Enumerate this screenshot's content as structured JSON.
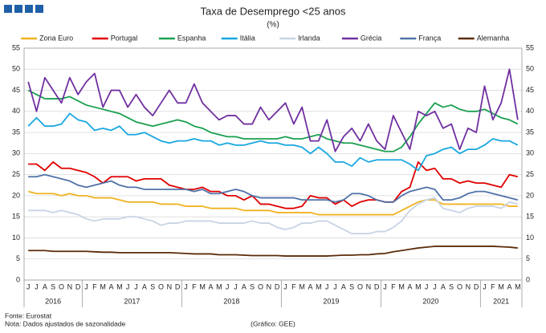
{
  "chart_data": {
    "type": "line",
    "title": "Taxa de Desemprego <25 anos",
    "subtitle": "(%)",
    "source": "Fonte: Eurostat",
    "note": "Nota: Dados ajustados de sazonalidade",
    "credit": "(Gráfico: GEE)",
    "categories": [
      "J",
      "J",
      "A",
      "S",
      "O",
      "N",
      "D",
      "J",
      "F",
      "M",
      "A",
      "M",
      "J",
      "J",
      "A",
      "S",
      "O",
      "N",
      "D",
      "J",
      "F",
      "M",
      "A",
      "M",
      "J",
      "J",
      "A",
      "S",
      "O",
      "N",
      "D",
      "J",
      "F",
      "M",
      "A",
      "M",
      "J",
      "J",
      "A",
      "S",
      "O",
      "N",
      "D",
      "J",
      "F",
      "M",
      "A",
      "M",
      "J",
      "J",
      "A",
      "S",
      "O",
      "N",
      "D",
      "J",
      "F",
      "M",
      "A",
      "M"
    ],
    "years": [
      "2016",
      "2017",
      "2018",
      "2019",
      "2020",
      "2021"
    ],
    "ylim": [
      0,
      55
    ],
    "yticks": [
      0,
      5,
      10,
      15,
      20,
      25,
      30,
      35,
      40,
      45,
      50,
      55
    ],
    "grid": true,
    "series": [
      {
        "name": "Zona Euro",
        "color": "#f0b323",
        "values": [
          21,
          20.5,
          20.5,
          20.5,
          20,
          20.5,
          20,
          20,
          19.5,
          19.5,
          19.5,
          19,
          18.5,
          18.5,
          18.5,
          18.5,
          18,
          18,
          18,
          17.5,
          17.5,
          17.5,
          17,
          17,
          17,
          17,
          16.5,
          16.5,
          16.5,
          16.5,
          16,
          16,
          16,
          16,
          16,
          15.5,
          15.5,
          15.5,
          15.5,
          15.5,
          15.5,
          15.5,
          15.5,
          15.5,
          15.5,
          16.5,
          17.5,
          18.5,
          19,
          19,
          18,
          18,
          18,
          18,
          18,
          18,
          18,
          18,
          17.5,
          17.5
        ]
      },
      {
        "name": "Portugal",
        "color": "#e00000",
        "values": [
          27.5,
          27.5,
          26,
          28,
          26.5,
          26.5,
          26,
          25.5,
          24.5,
          23,
          24.5,
          24.5,
          24.5,
          23.5,
          24,
          24,
          24,
          22.5,
          22,
          21.5,
          21.5,
          22,
          21,
          21,
          20,
          20,
          19,
          20,
          18,
          18,
          17.5,
          17,
          17,
          17.5,
          20,
          19.5,
          19.5,
          18,
          19,
          17.5,
          18.5,
          19,
          19,
          18.5,
          18.5,
          21,
          22,
          28,
          26,
          26.5,
          24,
          24,
          23,
          23.5,
          23,
          23,
          22.5,
          22,
          25,
          24.5
        ]
      },
      {
        "name": "Espanha",
        "color": "#1aa050",
        "values": [
          45,
          44,
          43,
          43,
          43,
          43.5,
          42.5,
          41.5,
          41,
          40.5,
          40,
          39.5,
          38.5,
          37.5,
          37,
          36.5,
          37,
          37.5,
          38,
          37.5,
          36.5,
          36,
          35,
          34.5,
          34,
          34,
          33.5,
          33.5,
          33.5,
          33.5,
          33.5,
          34,
          33.5,
          33.5,
          34,
          34.5,
          33.5,
          33,
          32.5,
          32.5,
          32,
          31.5,
          31,
          30.5,
          30.5,
          31.5,
          34,
          37,
          39.5,
          42,
          41,
          41.5,
          40.5,
          40,
          40,
          40.5,
          39.5,
          38.5,
          38,
          37
        ]
      },
      {
        "name": "Itália",
        "color": "#19a7e0",
        "values": [
          36.5,
          38.5,
          36.5,
          36.5,
          37,
          39.5,
          38,
          37.5,
          35.5,
          36,
          35.5,
          36.5,
          34.5,
          34.5,
          35,
          34,
          33,
          32.5,
          33,
          33,
          33.5,
          33,
          33,
          32,
          32.5,
          32,
          32,
          32.5,
          33,
          32.5,
          32.5,
          32,
          32,
          31.5,
          30,
          31.5,
          30,
          28,
          28,
          27,
          29,
          28,
          28.5,
          28.5,
          28.5,
          28.5,
          27.5,
          26,
          29.5,
          30,
          31,
          31.5,
          30,
          31,
          31,
          32,
          33.5,
          33,
          33,
          32
        ]
      },
      {
        "name": "Irlanda",
        "color": "#c8d4e4",
        "values": [
          16.5,
          16.5,
          16.5,
          16,
          16.5,
          16,
          15.5,
          14.5,
          14,
          14.5,
          14.5,
          14.5,
          15,
          15,
          14.5,
          14,
          13,
          13.5,
          13.5,
          14,
          14,
          14,
          14,
          13.5,
          13.5,
          13.5,
          13.5,
          14,
          13.5,
          13.5,
          12.5,
          12,
          12.5,
          13.5,
          13.5,
          14,
          14,
          13,
          12,
          11,
          11,
          11,
          11.5,
          11.5,
          12.5,
          14,
          16.5,
          18,
          19,
          19.5,
          17,
          16.5,
          16,
          17,
          17.5,
          17.5,
          17.5,
          17,
          18.5,
          18
        ]
      },
      {
        "name": "Grécia",
        "color": "#7030a0",
        "values": [
          47,
          40,
          48,
          45,
          42,
          48,
          44,
          47,
          49,
          41,
          45,
          45,
          41,
          44,
          41,
          39,
          42,
          45,
          42,
          42,
          46.5,
          42,
          40,
          38,
          39,
          39,
          37,
          37,
          41,
          38,
          40,
          42,
          37,
          41,
          33,
          33,
          38,
          30.5,
          34,
          36,
          33,
          37,
          33,
          31,
          39,
          35,
          31,
          40,
          39,
          40,
          36,
          37,
          31,
          36,
          35,
          46,
          38,
          42,
          50,
          38
        ]
      },
      {
        "name": "França",
        "color": "#4f73a8",
        "values": [
          24.5,
          24.5,
          25,
          24.5,
          24,
          23.5,
          22.5,
          22,
          22.5,
          23,
          23.5,
          22.5,
          22,
          22,
          21.5,
          21.5,
          21.5,
          21.5,
          21.5,
          21.5,
          21,
          21.5,
          20.5,
          20.5,
          21,
          21.5,
          21,
          20,
          19.5,
          19.5,
          19.5,
          19.5,
          19.5,
          19,
          19,
          19,
          19,
          18.5,
          19,
          20.5,
          20.5,
          20,
          19,
          18.5,
          18.5,
          20,
          21,
          21.5,
          22,
          21.5,
          19,
          19,
          19.5,
          20.5,
          21,
          21,
          20.5,
          20,
          19.5,
          19
        ]
      },
      {
        "name": "Alemanha",
        "color": "#5b2c0a",
        "values": [
          7,
          7,
          7,
          6.8,
          6.8,
          6.8,
          6.8,
          6.8,
          6.7,
          6.6,
          6.6,
          6.5,
          6.5,
          6.5,
          6.5,
          6.5,
          6.5,
          6.5,
          6.4,
          6.3,
          6.2,
          6.2,
          6.2,
          6,
          6,
          6,
          5.9,
          5.8,
          5.8,
          5.8,
          5.8,
          5.7,
          5.7,
          5.7,
          5.7,
          5.7,
          5.7,
          5.8,
          5.9,
          5.9,
          6,
          6,
          6.2,
          6.3,
          6.7,
          7,
          7.3,
          7.6,
          7.8,
          8,
          8,
          8,
          8,
          8,
          8,
          8,
          8,
          7.9,
          7.8,
          7.6
        ]
      }
    ]
  }
}
